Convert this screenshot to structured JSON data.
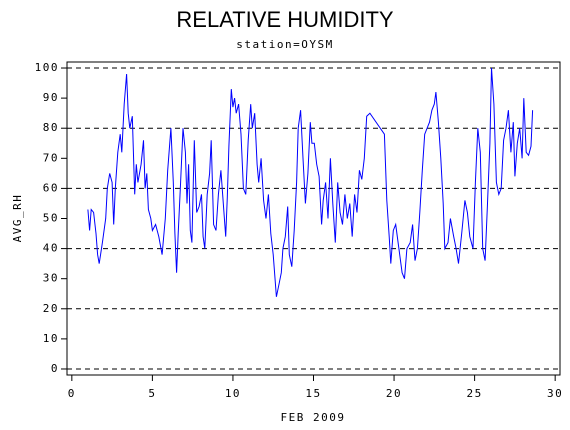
{
  "chart_data": {
    "type": "line",
    "title": "RELATIVE HUMIDITY",
    "subtitle": "station=OYSM",
    "y_label": "AVG_RH",
    "x_label": "FEB 2009",
    "xlim": [
      -0.3,
      30.3
    ],
    "ylim": [
      -2,
      102
    ],
    "xticks": [
      0,
      5,
      10,
      15,
      20,
      25,
      30
    ],
    "yticks": [
      0,
      10,
      20,
      30,
      40,
      50,
      60,
      70,
      80,
      90,
      100
    ],
    "grid_lines": [
      0,
      20,
      40,
      60,
      80,
      100
    ],
    "x": [
      1.0,
      1.1,
      1.2,
      1.35,
      1.5,
      1.6,
      1.7,
      1.9,
      2.1,
      2.2,
      2.35,
      2.5,
      2.6,
      2.7,
      2.85,
      3.0,
      3.1,
      3.25,
      3.4,
      3.5,
      3.6,
      3.75,
      3.9,
      4.0,
      4.1,
      4.3,
      4.45,
      4.55,
      4.65,
      4.75,
      4.9,
      5.0,
      5.2,
      5.4,
      5.6,
      5.8,
      5.95,
      6.15,
      6.3,
      6.4,
      6.5,
      6.6,
      6.75,
      6.9,
      7.05,
      7.15,
      7.25,
      7.35,
      7.45,
      7.6,
      7.75,
      7.9,
      8.05,
      8.15,
      8.25,
      8.4,
      8.55,
      8.65,
      8.8,
      8.95,
      9.1,
      9.25,
      9.4,
      9.55,
      9.65,
      9.75,
      9.9,
      10.0,
      10.1,
      10.2,
      10.35,
      10.5,
      10.65,
      10.8,
      10.95,
      11.1,
      11.2,
      11.35,
      11.5,
      11.6,
      11.75,
      11.9,
      12.05,
      12.2,
      12.35,
      12.5,
      12.7,
      12.85,
      13.0,
      13.1,
      13.25,
      13.4,
      13.5,
      13.65,
      13.8,
      13.95,
      14.05,
      14.2,
      14.35,
      14.5,
      14.65,
      14.8,
      14.9,
      15.05,
      15.2,
      15.35,
      15.5,
      15.6,
      15.75,
      15.9,
      16.05,
      16.2,
      16.35,
      16.5,
      16.65,
      16.8,
      16.95,
      17.1,
      17.25,
      17.4,
      17.55,
      17.7,
      17.85,
      18.0,
      18.15,
      18.3,
      18.5,
      19.4,
      19.55,
      19.7,
      19.8,
      19.95,
      20.1,
      20.3,
      20.5,
      20.65,
      20.8,
      21.0,
      21.15,
      21.3,
      21.45,
      21.6,
      21.75,
      21.9,
      22.05,
      22.2,
      22.35,
      22.5,
      22.6,
      22.75,
      22.9,
      23.05,
      23.15,
      23.35,
      23.5,
      23.7,
      23.85,
      24.0,
      24.2,
      24.4,
      24.55,
      24.7,
      24.9,
      25.05,
      25.2,
      25.35,
      25.5,
      25.65,
      25.8,
      25.95,
      26.05,
      26.2,
      26.35,
      26.5,
      26.65,
      26.8,
      26.95,
      27.1,
      27.25,
      27.4,
      27.5,
      27.65,
      27.8,
      27.95,
      28.05,
      28.2,
      28.35,
      28.5,
      28.6
    ],
    "series": [
      {
        "name": "AVG_RH",
        "color": "#0000ff",
        "values": [
          53,
          46,
          53,
          52,
          45,
          38,
          35,
          42,
          50,
          60,
          65,
          62,
          48,
          60,
          72,
          78,
          72,
          88,
          98,
          85,
          80,
          84,
          58,
          68,
          62,
          68,
          76,
          60,
          65,
          53,
          50,
          46,
          48,
          44,
          38,
          50,
          66,
          80,
          62,
          45,
          32,
          45,
          62,
          80,
          72,
          55,
          68,
          46,
          42,
          76,
          52,
          54,
          58,
          44,
          40,
          58,
          65,
          76,
          48,
          46,
          58,
          66,
          55,
          44,
          57,
          74,
          93,
          87,
          90,
          85,
          88,
          78,
          60,
          58,
          76,
          88,
          80,
          85,
          68,
          62,
          70,
          56,
          50,
          58,
          45,
          38,
          24,
          28,
          32,
          40,
          44,
          54,
          38,
          34,
          46,
          62,
          80,
          86,
          70,
          55,
          65,
          82,
          75,
          75,
          68,
          64,
          48,
          56,
          62,
          50,
          70,
          55,
          42,
          62,
          52,
          48,
          58,
          50,
          55,
          44,
          58,
          52,
          66,
          63,
          70,
          84,
          85,
          78,
          56,
          44,
          35,
          46,
          48,
          40,
          32,
          30,
          40,
          42,
          48,
          36,
          40,
          52,
          66,
          78,
          80,
          82,
          86,
          88,
          92,
          82,
          70,
          55,
          40,
          42,
          50,
          44,
          40,
          35,
          45,
          56,
          52,
          44,
          40,
          62,
          80,
          72,
          40,
          36,
          55,
          75,
          100,
          88,
          62,
          58,
          60,
          76,
          80,
          86,
          72,
          82,
          64,
          75,
          80,
          70,
          90,
          72,
          71,
          74,
          86
        ]
      }
    ]
  }
}
